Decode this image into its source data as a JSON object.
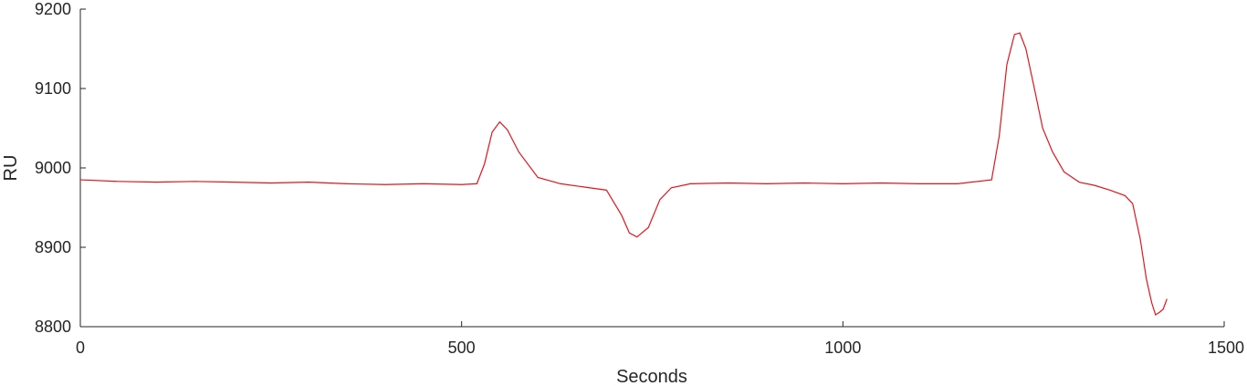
{
  "chart_data": {
    "type": "line",
    "title": "",
    "xlabel": "Seconds",
    "ylabel": "RU",
    "xlim": [
      0,
      1500
    ],
    "ylim": [
      8800,
      9200
    ],
    "xticks": [
      0,
      500,
      1000,
      1500
    ],
    "yticks": [
      8800,
      8900,
      9000,
      9100,
      9200
    ],
    "xtick_labels": [
      "0",
      "500",
      "1000",
      "1500"
    ],
    "ytick_labels": [
      "8800",
      "8900",
      "9000",
      "9100",
      "9200"
    ],
    "grid": false,
    "series": [
      {
        "color": "#e8141c",
        "x": [
          0,
          50,
          100,
          150,
          200,
          250,
          300,
          350,
          400,
          450,
          500,
          520,
          530,
          540,
          550,
          560,
          575,
          600,
          630,
          660,
          690,
          710,
          720,
          730,
          745,
          760,
          775,
          800,
          850,
          900,
          950,
          1000,
          1050,
          1100,
          1150,
          1195,
          1205,
          1215,
          1225,
          1232,
          1240,
          1250,
          1262,
          1275,
          1290,
          1310,
          1330,
          1350,
          1370,
          1380,
          1390,
          1398,
          1405,
          1410,
          1415,
          1420,
          1425
        ],
        "y": [
          8985,
          8983,
          8982,
          8983,
          8982,
          8981,
          8982,
          8980,
          8979,
          8980,
          8979,
          8980,
          9005,
          9045,
          9058,
          9048,
          9020,
          8988,
          8980,
          8976,
          8972,
          8940,
          8918,
          8913,
          8925,
          8960,
          8975,
          8980,
          8981,
          8980,
          8981,
          8980,
          8981,
          8980,
          8980,
          8985,
          9040,
          9130,
          9168,
          9170,
          9150,
          9105,
          9050,
          9020,
          8995,
          8982,
          8978,
          8972,
          8965,
          8955,
          8910,
          8860,
          8830,
          8815,
          8818,
          8822,
          8835
        ]
      }
    ]
  }
}
